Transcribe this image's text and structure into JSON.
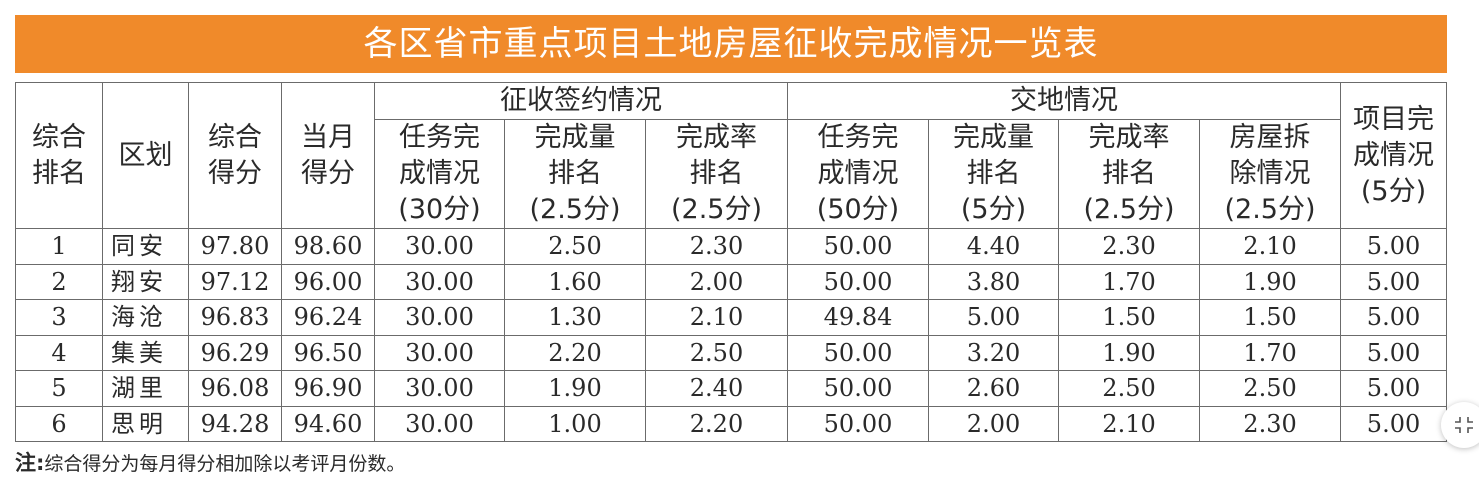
{
  "title": "各区省市重点项目土地房屋征收完成情况一览表",
  "header": {
    "group_sign": "征收签约情况",
    "group_land": "交地情况",
    "rank": "综合\n排名",
    "district": "区划",
    "total_score": "综合\n得分",
    "month_score": "当月\n得分",
    "sign_task": "任务完\n成情况\n(30分)",
    "sign_qty_rank": "完成量\n排名\n(2.5分)",
    "sign_rate_rank": "完成率\n排名\n(2.5分)",
    "land_task": "任务完\n成情况\n(50分)",
    "land_qty_rank": "完成量\n排名\n(5分)",
    "land_rate_rank": "完成率\n排名\n(2.5分)",
    "demolition": "房屋拆\n除情况\n(2.5分)",
    "project_done": "项目完\n成情况\n(5分)"
  },
  "rows": [
    {
      "rank": "1",
      "district": "同安",
      "total": "97.80",
      "month": "98.60",
      "sign_task": "30.00",
      "sign_qty": "2.50",
      "sign_rate": "2.30",
      "land_task": "50.00",
      "land_qty": "4.40",
      "land_rate": "2.30",
      "demolition": "2.10",
      "project": "5.00"
    },
    {
      "rank": "2",
      "district": "翔安",
      "total": "97.12",
      "month": "96.00",
      "sign_task": "30.00",
      "sign_qty": "1.60",
      "sign_rate": "2.00",
      "land_task": "50.00",
      "land_qty": "3.80",
      "land_rate": "1.70",
      "demolition": "1.90",
      "project": "5.00"
    },
    {
      "rank": "3",
      "district": "海沧",
      "total": "96.83",
      "month": "96.24",
      "sign_task": "30.00",
      "sign_qty": "1.30",
      "sign_rate": "2.10",
      "land_task": "49.84",
      "land_qty": "5.00",
      "land_rate": "1.50",
      "demolition": "1.50",
      "project": "5.00"
    },
    {
      "rank": "4",
      "district": "集美",
      "total": "96.29",
      "month": "96.50",
      "sign_task": "30.00",
      "sign_qty": "2.20",
      "sign_rate": "2.50",
      "land_task": "50.00",
      "land_qty": "3.20",
      "land_rate": "1.90",
      "demolition": "1.70",
      "project": "5.00"
    },
    {
      "rank": "5",
      "district": "湖里",
      "total": "96.08",
      "month": "96.90",
      "sign_task": "30.00",
      "sign_qty": "1.90",
      "sign_rate": "2.40",
      "land_task": "50.00",
      "land_qty": "2.60",
      "land_rate": "2.50",
      "demolition": "2.50",
      "project": "5.00"
    },
    {
      "rank": "6",
      "district": "思明",
      "total": "94.28",
      "month": "94.60",
      "sign_task": "30.00",
      "sign_qty": "1.00",
      "sign_rate": "2.20",
      "land_task": "50.00",
      "land_qty": "2.00",
      "land_rate": "2.10",
      "demolition": "2.30",
      "project": "5.00"
    }
  ],
  "note": {
    "prefix": "注:",
    "text": "综合得分为每月得分相加除以考评月份数。"
  },
  "colors": {
    "title_bar": "#f08a2a",
    "border": "#6b6b6b",
    "text": "#2a2a2a"
  },
  "icons": {
    "expand": "collapse-arrows-icon"
  }
}
